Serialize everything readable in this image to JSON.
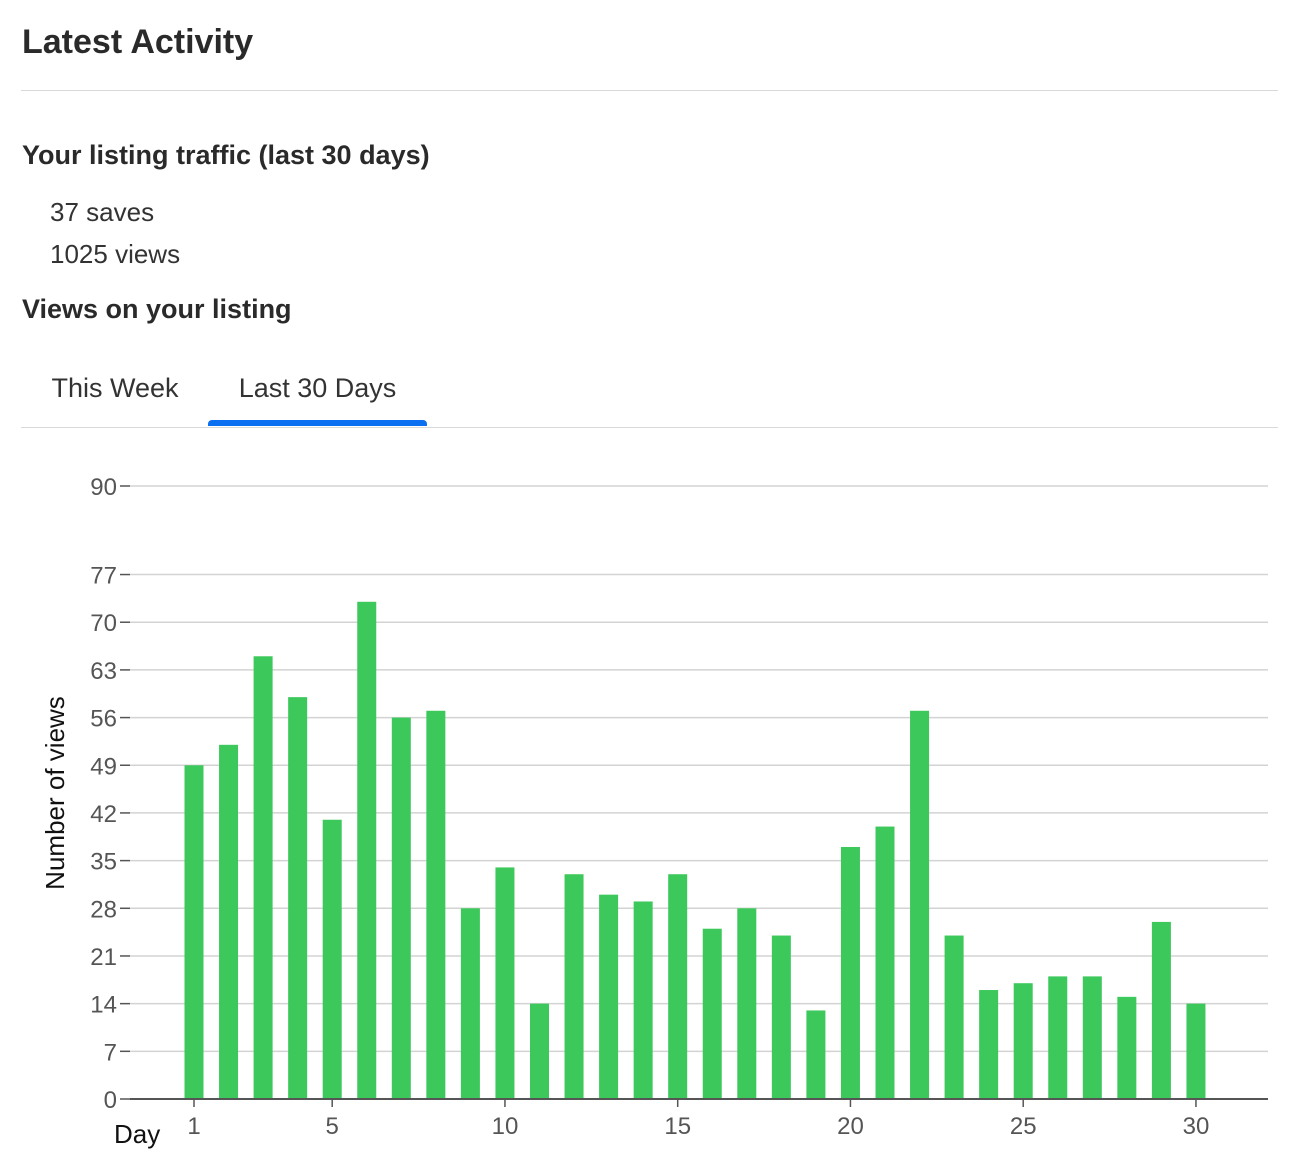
{
  "header": {
    "title": "Latest Activity"
  },
  "traffic": {
    "heading": "Your listing traffic (last 30 days)",
    "saves": "37 saves",
    "views": "1025 views"
  },
  "views_section": {
    "heading": "Views on your listing",
    "tabs": [
      {
        "label": "This Week",
        "active": false
      },
      {
        "label": "Last 30 Days",
        "active": true
      }
    ]
  },
  "colors": {
    "bar": "#3cc85a",
    "accent": "#0a6ff0",
    "grid": "#d3d3d3"
  },
  "chart_data": {
    "type": "bar",
    "xlabel": "Day",
    "ylabel": "Number of views",
    "x_ticks": [
      1,
      5,
      10,
      15,
      20,
      25,
      30
    ],
    "y_ticks": [
      0,
      7,
      14,
      21,
      28,
      35,
      42,
      49,
      56,
      63,
      70,
      77,
      90
    ],
    "ylim": [
      0,
      90
    ],
    "xlim": [
      0.5,
      32
    ],
    "grid": true,
    "categories": [
      1,
      2,
      3,
      4,
      5,
      6,
      7,
      8,
      9,
      10,
      11,
      12,
      13,
      14,
      15,
      16,
      17,
      18,
      19,
      20,
      21,
      22,
      23,
      24,
      25,
      26,
      27,
      28,
      29,
      30
    ],
    "values": [
      49,
      52,
      65,
      59,
      41,
      73,
      56,
      57,
      28,
      34,
      14,
      33,
      30,
      29,
      33,
      25,
      28,
      24,
      13,
      37,
      40,
      57,
      24,
      16,
      17,
      18,
      18,
      15,
      26,
      14
    ]
  }
}
